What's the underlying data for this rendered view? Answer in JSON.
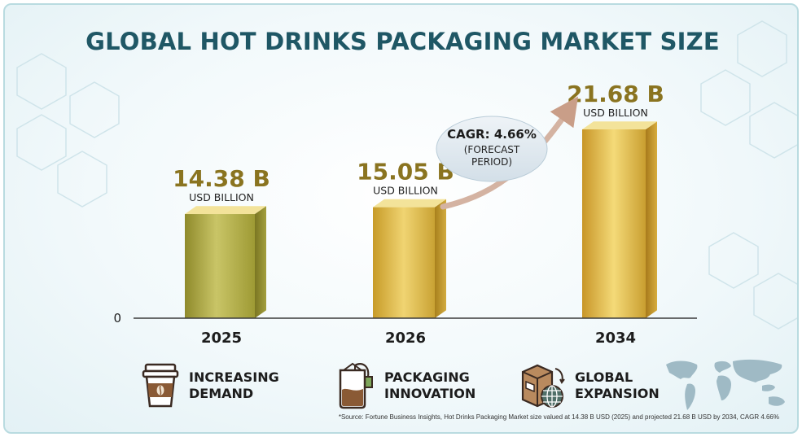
{
  "title": "GLOBAL HOT DRINKS PACKAGING MARKET SIZE",
  "chart_data": {
    "type": "bar",
    "title": "GLOBAL HOT DRINKS PACKAGING MARKET SIZE",
    "categories": [
      "2025",
      "2026",
      "2034"
    ],
    "values": [
      14.38,
      15.05,
      21.68
    ],
    "value_labels": [
      "14.38 B",
      "15.05 B",
      "21.68 B"
    ],
    "unit_label": "USD BILLION",
    "y_tick_label": "0",
    "xlabel": "",
    "ylabel": "",
    "grid": false,
    "bar_colors": [
      "#a9a838",
      "#d7b93a",
      "#d8b341"
    ],
    "annotation": {
      "line1": "CAGR: 4.66%",
      "line2": "(FORECAST",
      "line3": "PERIOD)"
    }
  },
  "features": [
    {
      "label": "INCREASING\nDEMAND",
      "icon": "coffee-cup-icon"
    },
    {
      "label": "PACKAGING\nINNOVATION",
      "icon": "tea-bag-icon"
    },
    {
      "label": "GLOBAL\nEXPANSION",
      "icon": "global-package-icon"
    }
  ],
  "source": "*Source: Fortune Business Insights, Hot Drinks Packaging Market size valued at 14.38 B USD (2025) and projected 21.68 B USD by 2034, CAGR 4.66%",
  "colors": {
    "title": "#1f5765",
    "value_text": "#8a7420",
    "arrow": "#cda98a",
    "bubble": "#dfe8ee"
  }
}
